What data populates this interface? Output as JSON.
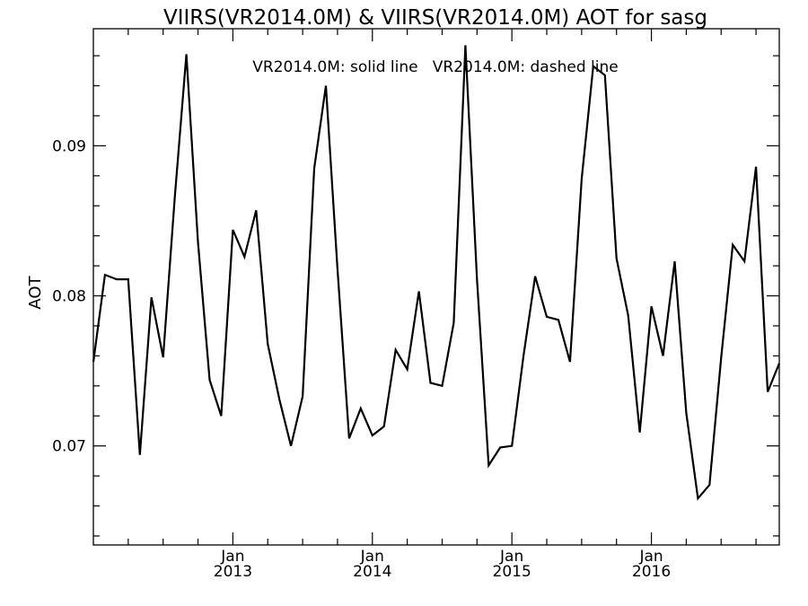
{
  "chart_data": {
    "type": "line",
    "title": "VIIRS(VR2014.0M) & VIIRS(VR2014.0M)  AOT for sasg",
    "annotation": "VR2014.0M: solid line   VR2014.0M: dashed line",
    "xlabel": "",
    "ylabel": "AOT",
    "ylim": [
      0.0634,
      0.0978
    ],
    "y_ticks": [
      {
        "value": 0.07,
        "label": "0.07"
      },
      {
        "value": 0.08,
        "label": "0.08"
      },
      {
        "value": 0.09,
        "label": "0.09"
      }
    ],
    "x_ticks": [
      {
        "date": "2013-01",
        "month": "Jan",
        "year": "2013"
      },
      {
        "date": "2014-01",
        "month": "Jan",
        "year": "2014"
      },
      {
        "date": "2015-01",
        "month": "Jan",
        "year": "2015"
      },
      {
        "date": "2016-01",
        "month": "Jan",
        "year": "2016"
      }
    ],
    "xlim": [
      "2012-01",
      "2016-12"
    ],
    "series": [
      {
        "line_style": "solid",
        "x": [
          "2012-01",
          "2012-02",
          "2012-03",
          "2012-04",
          "2012-05",
          "2012-06",
          "2012-07",
          "2012-08",
          "2012-09",
          "2012-10",
          "2012-11",
          "2012-12",
          "2013-01",
          "2013-02",
          "2013-03",
          "2013-04",
          "2013-05",
          "2013-06",
          "2013-07",
          "2013-08",
          "2013-09",
          "2013-10",
          "2013-11",
          "2013-12",
          "2014-01",
          "2014-02",
          "2014-03",
          "2014-04",
          "2014-05",
          "2014-06",
          "2014-07",
          "2014-08",
          "2014-09",
          "2014-10",
          "2014-11",
          "2014-12",
          "2015-01",
          "2015-02",
          "2015-03",
          "2015-04",
          "2015-05",
          "2015-06",
          "2015-07",
          "2015-08",
          "2015-09",
          "2015-10",
          "2015-11",
          "2015-12",
          "2016-01",
          "2016-02",
          "2016-03",
          "2016-04",
          "2016-05",
          "2016-06",
          "2016-07",
          "2016-08",
          "2016-09",
          "2016-10",
          "2016-11",
          "2016-12"
        ],
        "y": [
          0.0756,
          0.0814,
          0.0811,
          0.0811,
          0.0694,
          0.0799,
          0.0759,
          0.0865,
          0.0961,
          0.0836,
          0.0744,
          0.072,
          0.0844,
          0.0826,
          0.0857,
          0.0768,
          0.0731,
          0.07,
          0.0733,
          0.0885,
          0.094,
          0.0818,
          0.0705,
          0.0725,
          0.0707,
          0.0713,
          0.0764,
          0.0751,
          0.0803,
          0.0742,
          0.074,
          0.0782,
          0.0967,
          0.0811,
          0.0687,
          0.0699,
          0.07,
          0.076,
          0.0813,
          0.0786,
          0.0784,
          0.0756,
          0.0878,
          0.0953,
          0.0947,
          0.0825,
          0.0787,
          0.0709,
          0.0793,
          0.076,
          0.0823,
          0.0722,
          0.0665,
          0.0674,
          0.0759,
          0.0834,
          0.0823,
          0.0886,
          0.0736,
          0.0755
        ]
      }
    ]
  }
}
